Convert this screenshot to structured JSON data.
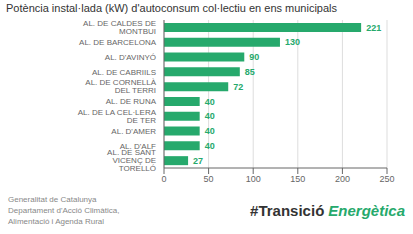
{
  "chart_data": {
    "type": "bar",
    "title": "Potència instal·lada (kW) d'autoconsum col·lectiu en ens municipals",
    "orientation": "horizontal",
    "categories": [
      "AL. DE SANT VICENÇ DE TORELLÓ",
      "AL. D'ALF",
      "AL. D'AMER",
      "AL. DE LA CEL·LERA DE TER",
      "AL. DE RUNA",
      "AL. DE CORNELLÀ DEL TERRI",
      "AL. DE CABRIILS",
      "AL. D'AVINYÓ",
      "AL. DE BARCELONA",
      "AL. DE CALDES DE MONTBUI"
    ],
    "values": [
      27,
      40,
      40,
      40,
      40,
      72,
      85,
      90,
      130,
      221
    ],
    "color": "#26a96c",
    "xlim": [
      0,
      250
    ],
    "xticks": [
      0,
      50,
      100,
      150,
      200,
      250
    ],
    "grid": true,
    "data_labels": true,
    "annotations": [
      "Generalitat de Catalunya",
      "Departament d'Acció Climàtica,",
      "Alimentació i Agenda Rural",
      "#Transició",
      "Energètica"
    ]
  }
}
